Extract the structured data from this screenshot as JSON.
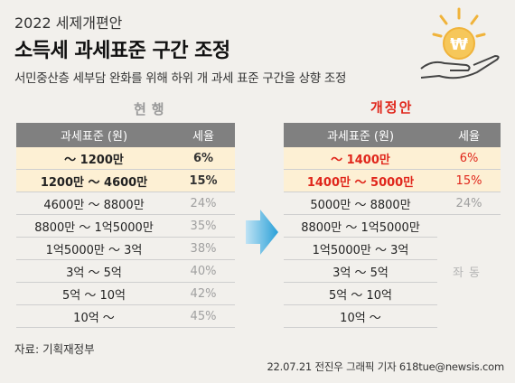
{
  "header": {
    "topline": "2022 세제개편안",
    "title": "소득세 과세표준 구간 조정",
    "subtitle": "서민중산층 세부담 완화를 위해 하위 개 과세 표준 구간을 상향 조정"
  },
  "current": {
    "heading": "현행",
    "col_range": "과세표준 (원)",
    "col_rate": "세율",
    "rows": [
      {
        "range": "～ 1200만",
        "rate": "6%"
      },
      {
        "range": "1200만 ～ 4600만",
        "rate": "15%"
      },
      {
        "range": "4600만 ～ 8800만",
        "rate": "24%"
      },
      {
        "range": "8800만 ～ 1억5000만",
        "rate": "35%"
      },
      {
        "range": "1억5000만 ～ 3억",
        "rate": "38%"
      },
      {
        "range": "3억 ～ 5억",
        "rate": "40%"
      },
      {
        "range": "5억 ～ 10억",
        "rate": "42%"
      },
      {
        "range": "10억 ～",
        "rate": "45%"
      }
    ]
  },
  "reform": {
    "heading": "개정안",
    "col_range": "과세표준 (원)",
    "col_rate": "세율",
    "rows": [
      {
        "range": "～ 1400만",
        "rate": "6%"
      },
      {
        "range": "1400만 ～ 5000만",
        "rate": "15%"
      },
      {
        "range": "5000만 ～ 8800만",
        "rate": "24%"
      },
      {
        "range": "8800만 ～ 1억5000만"
      },
      {
        "range": "1억5000만 ～ 3억"
      },
      {
        "range": "3억 ～ 5억"
      },
      {
        "range": "5억 ～ 10억"
      },
      {
        "range": "10억 ～"
      }
    ],
    "same_label": "좌동"
  },
  "icons": {
    "arrow": "right-arrow-icon",
    "illustration": "hand-holding-won-coin-icon",
    "won_symbol": "₩"
  },
  "colors": {
    "background": "#f2f0ec",
    "header_row": "#808080",
    "highlight": "#fdf0d4",
    "accent_red": "#e0261b",
    "arrow_blue": "#2aa0d8"
  },
  "footer": {
    "source": "자료: 기획재정부",
    "credit": "22.07.21 전진우 그래픽 기자 618tue@newsis.com"
  }
}
